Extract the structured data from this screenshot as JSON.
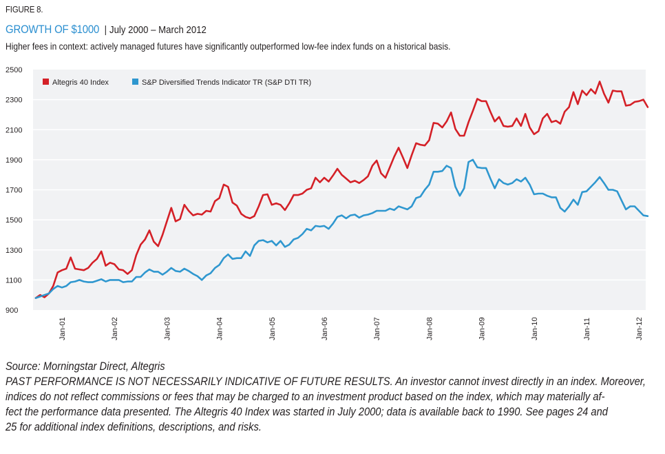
{
  "figure_label": "FIGURE 8.",
  "title": {
    "main": "GROWTH OF $1000",
    "separator": "|",
    "date_range": "July 2000 – March 2012"
  },
  "subtitle": "Higher fees in context: actively managed futures have significantly outperformed low-fee index funds on a historical basis.",
  "colors": {
    "title_blue": "#2b8fd0",
    "altegris_red": "#d42027",
    "sp_dti_blue": "#2f97cf",
    "plot_background": "#f1f2f4",
    "gridline": "#ffffff"
  },
  "chart_data": {
    "type": "line",
    "title": "GROWTH OF $1000",
    "xlabel": "",
    "ylabel": "",
    "ylim": [
      900,
      2500
    ],
    "yticks": [
      900,
      1100,
      1300,
      1500,
      1700,
      1900,
      2100,
      2300,
      2500
    ],
    "ytick_labels": [
      "900",
      "1100",
      "1300",
      "1500",
      "1700",
      "1900",
      "2100",
      "2300",
      "2500"
    ],
    "xticks_labels": [
      "Jan-01",
      "Jan-02",
      "Jan-03",
      "Jan-04",
      "Jan-05",
      "Jan-06",
      "Jan-07",
      "Jan-08",
      "Jan-09",
      "Jan-10",
      "Jan-11",
      "Jan-12"
    ],
    "x_start": "Jul-2000",
    "x_end": "Mar-2012",
    "x_frequency": "monthly",
    "grid": true,
    "legend_position": "top-left",
    "series": [
      {
        "name": "Altegris 40 Index",
        "color": "#d42027",
        "values": [
          980,
          1000,
          985,
          1010,
          1060,
          1150,
          1165,
          1175,
          1250,
          1175,
          1170,
          1165,
          1180,
          1215,
          1240,
          1290,
          1195,
          1215,
          1205,
          1170,
          1165,
          1140,
          1165,
          1265,
          1335,
          1370,
          1430,
          1355,
          1325,
          1400,
          1490,
          1580,
          1490,
          1505,
          1600,
          1560,
          1530,
          1540,
          1535,
          1560,
          1555,
          1625,
          1645,
          1735,
          1720,
          1615,
          1595,
          1540,
          1520,
          1510,
          1525,
          1590,
          1665,
          1670,
          1600,
          1610,
          1600,
          1565,
          1610,
          1665,
          1665,
          1675,
          1700,
          1710,
          1780,
          1750,
          1780,
          1755,
          1795,
          1840,
          1800,
          1775,
          1750,
          1760,
          1745,
          1765,
          1790,
          1860,
          1895,
          1810,
          1780,
          1850,
          1920,
          1980,
          1915,
          1845,
          1930,
          2010,
          2000,
          1995,
          2030,
          2145,
          2140,
          2115,
          2155,
          2215,
          2105,
          2060,
          2060,
          2150,
          2225,
          2305,
          2290,
          2290,
          2220,
          2155,
          2185,
          2125,
          2120,
          2125,
          2175,
          2125,
          2205,
          2115,
          2070,
          2090,
          2175,
          2205,
          2150,
          2160,
          2140,
          2220,
          2250,
          2350,
          2270,
          2360,
          2330,
          2370,
          2340,
          2420,
          2340,
          2280,
          2360,
          2355,
          2355,
          2260,
          2265,
          2285,
          2290,
          2300,
          2250
        ]
      },
      {
        "name": "S&P Diversified Trends Indicator TR (S&P DTI TR)",
        "color": "#2f97cf",
        "values": [
          980,
          990,
          1000,
          1010,
          1040,
          1060,
          1050,
          1060,
          1085,
          1090,
          1100,
          1090,
          1085,
          1085,
          1095,
          1105,
          1090,
          1100,
          1100,
          1100,
          1085,
          1090,
          1090,
          1120,
          1120,
          1150,
          1170,
          1155,
          1155,
          1135,
          1155,
          1180,
          1160,
          1155,
          1175,
          1160,
          1140,
          1125,
          1100,
          1130,
          1145,
          1180,
          1200,
          1245,
          1270,
          1240,
          1245,
          1245,
          1290,
          1260,
          1330,
          1360,
          1365,
          1350,
          1360,
          1330,
          1360,
          1320,
          1335,
          1370,
          1380,
          1405,
          1440,
          1430,
          1460,
          1455,
          1460,
          1440,
          1475,
          1520,
          1530,
          1510,
          1530,
          1535,
          1515,
          1530,
          1535,
          1545,
          1560,
          1560,
          1560,
          1575,
          1565,
          1590,
          1580,
          1570,
          1590,
          1645,
          1655,
          1700,
          1735,
          1820,
          1820,
          1825,
          1860,
          1845,
          1720,
          1660,
          1710,
          1885,
          1900,
          1850,
          1845,
          1845,
          1775,
          1710,
          1770,
          1745,
          1735,
          1745,
          1770,
          1755,
          1780,
          1735,
          1670,
          1675,
          1675,
          1660,
          1650,
          1650,
          1580,
          1555,
          1590,
          1635,
          1600,
          1685,
          1690,
          1720,
          1750,
          1785,
          1745,
          1700,
          1700,
          1690,
          1630,
          1570,
          1590,
          1590,
          1560,
          1530,
          1525
        ]
      }
    ]
  },
  "legend": {
    "items": [
      {
        "label": "Altegris 40 Index",
        "color": "#d42027"
      },
      {
        "label": "S&P Diversified Trends Indicator TR (S&P DTI TR)",
        "color": "#2f97cf"
      }
    ]
  },
  "footer": {
    "source": "Source: Morningstar Direct, Altegris",
    "disclaimer_lines": [
      "PAST PERFORMANCE IS NOT NECESSARILY INDICATIVE OF FUTURE RESULTS. An investor cannot invest directly in an index. Moreover,",
      "indices do not reflect commissions or fees that may be charged to an investment product based on the index, which may materially af-",
      "fect the performance data presented. The Altegris 40 Index was started in July 2000; data is available back to 1990. See pages 24 and",
      "25 for additional index definitions, descriptions, and risks."
    ]
  }
}
